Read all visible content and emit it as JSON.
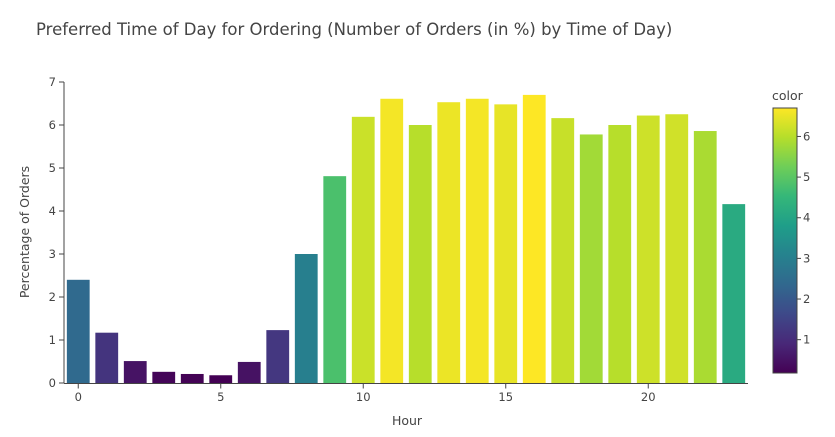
{
  "chart_data": {
    "type": "bar",
    "title": "Preferred Time of Day for Ordering (Number of Orders (in %) by Time of Day)",
    "xlabel": "Hour",
    "ylabel": "Percentage of Orders",
    "x": [
      0,
      1,
      2,
      3,
      4,
      5,
      6,
      7,
      8,
      9,
      10,
      11,
      12,
      13,
      14,
      15,
      16,
      17,
      18,
      19,
      20,
      21,
      22,
      23
    ],
    "values": [
      2.4,
      1.17,
      0.51,
      0.26,
      0.21,
      0.18,
      0.49,
      1.23,
      3.0,
      4.81,
      6.19,
      6.61,
      6.0,
      6.53,
      6.61,
      6.48,
      6.7,
      6.16,
      5.78,
      6.0,
      6.22,
      6.25,
      5.86,
      4.16
    ],
    "xlim": [
      -0.5,
      23.5
    ],
    "ylim": [
      0,
      7
    ],
    "xticks": [
      0,
      5,
      10,
      15,
      20
    ],
    "yticks": [
      0,
      1,
      2,
      3,
      4,
      5,
      6,
      7
    ],
    "grid": false,
    "colorbar": {
      "title": "color",
      "colorscale": "viridis",
      "range": [
        0.18,
        6.7
      ],
      "ticks": [
        1,
        2,
        3,
        4,
        5,
        6
      ]
    }
  }
}
